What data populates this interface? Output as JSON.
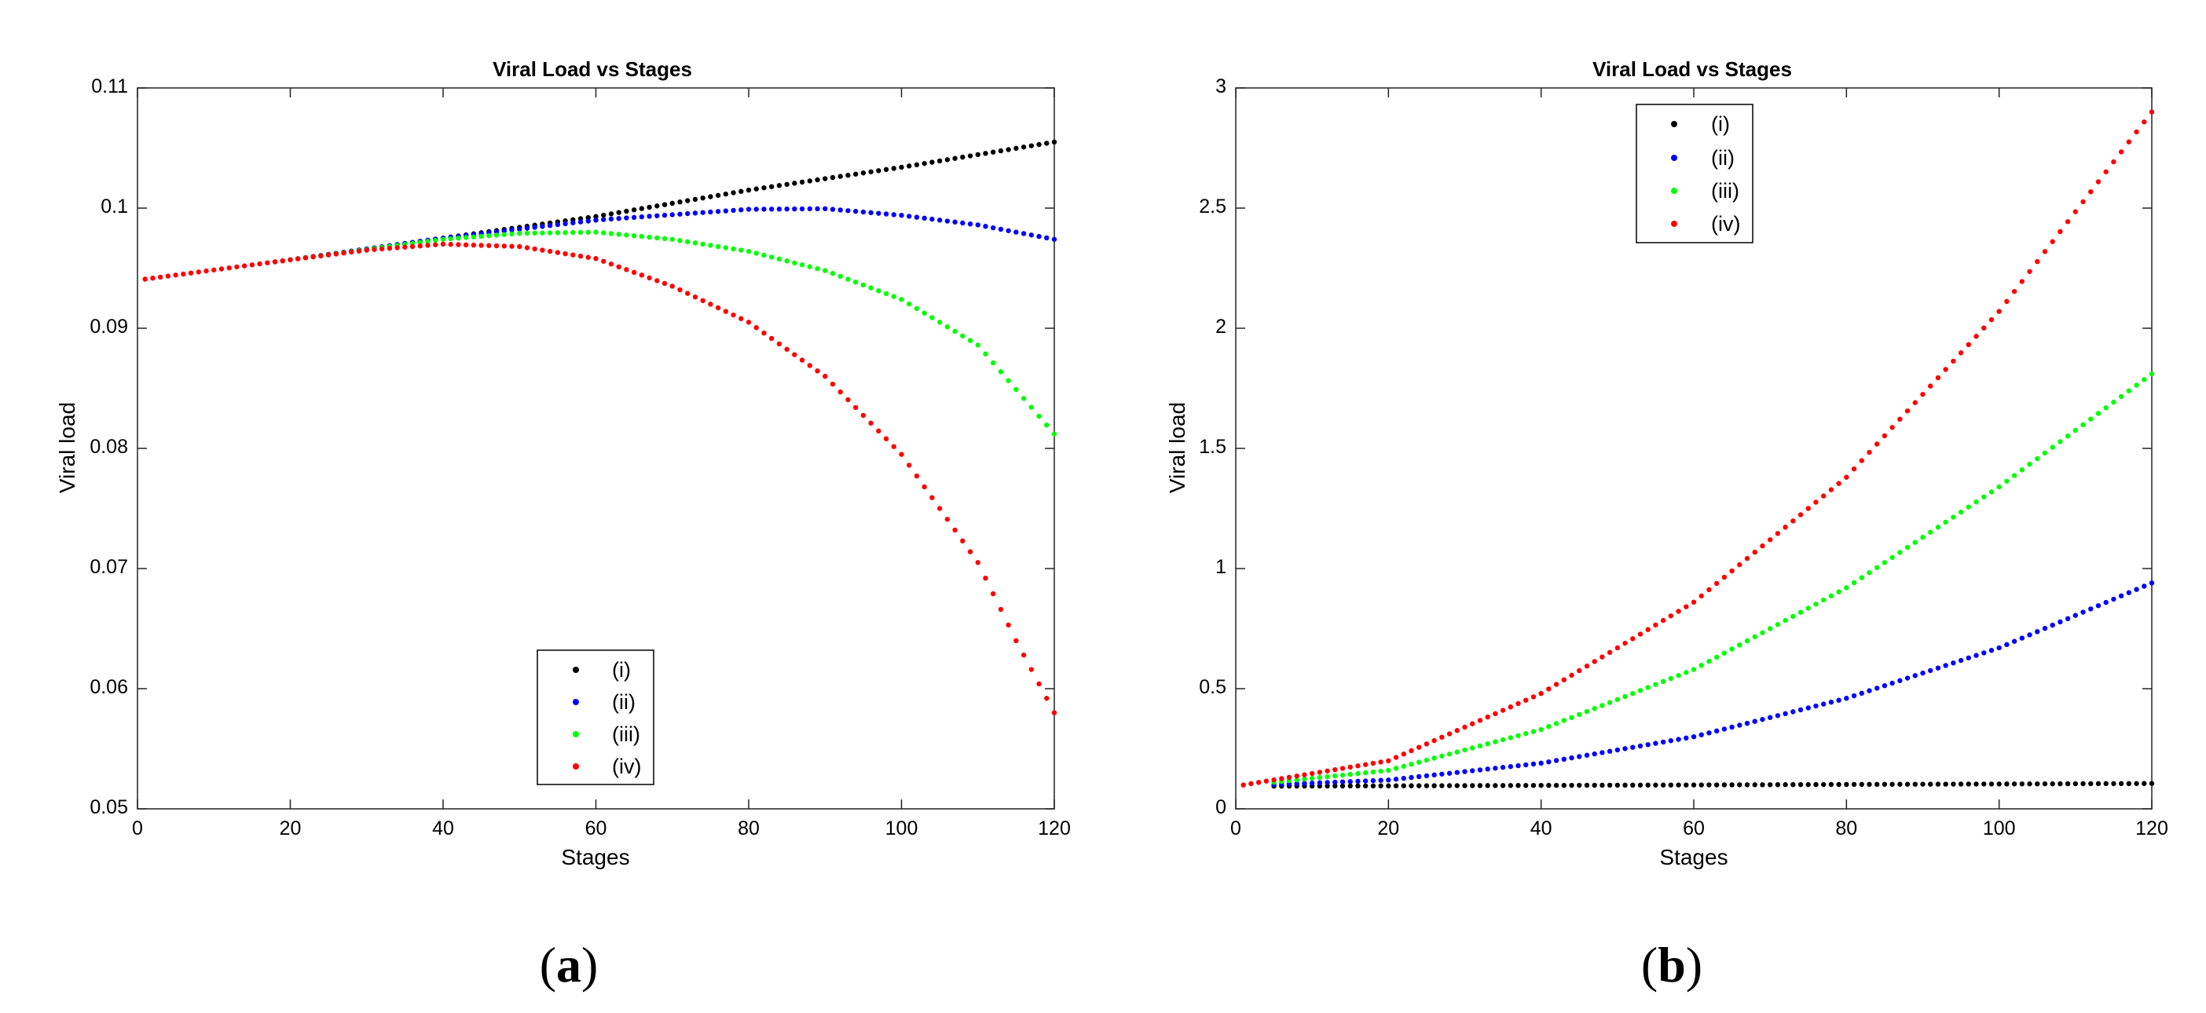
{
  "panels": [
    {
      "caption_letter": "a",
      "chart_data": {
        "type": "scatter",
        "title": "Viral Load vs Stages",
        "xlabel": "Stages",
        "ylabel": "Viral load",
        "xlim": [
          0,
          120
        ],
        "ylim": [
          0.05,
          0.11
        ],
        "xticks": [
          0,
          20,
          40,
          60,
          80,
          100,
          120
        ],
        "xtick_labels": [
          "0",
          "20",
          "40",
          "60",
          "80",
          "100",
          "120"
        ],
        "yticks": [
          0.05,
          0.06,
          0.07,
          0.08,
          0.09,
          0.1,
          0.11
        ],
        "ytick_labels": [
          "0.05",
          "0.06",
          "0.07",
          "0.08",
          "0.09",
          "0.1",
          "0.11"
        ],
        "grid": false,
        "legend_position": "bottom-center",
        "x": {
          "start": 1,
          "end": 120,
          "step": 1
        },
        "series": [
          {
            "name": "(i)",
            "color": "#000000",
            "start": 18,
            "knots_x": [
              0,
              20,
              40,
              60,
              80,
              100,
              120
            ],
            "knots_y": [
              0.094,
              0.0957,
              0.0975,
              0.0993,
              0.1015,
              0.1034,
              0.1055
            ]
          },
          {
            "name": "(ii)",
            "color": "#0000ff",
            "start": 18,
            "knots_x": [
              0,
              20,
              40,
              60,
              80,
              90,
              100,
              110,
              120
            ],
            "knots_y": [
              0.094,
              0.0957,
              0.0975,
              0.099,
              0.0999,
              0.09995,
              0.0994,
              0.0986,
              0.0974
            ]
          },
          {
            "name": "(iii)",
            "color": "#00ff00",
            "start": 18,
            "knots_x": [
              0,
              20,
              40,
              50,
              60,
              70,
              80,
              90,
              100,
              110,
              120
            ],
            "knots_y": [
              0.094,
              0.0957,
              0.0974,
              0.0979,
              0.098,
              0.0974,
              0.0964,
              0.0948,
              0.0924,
              0.0886,
              0.0812
            ]
          },
          {
            "name": "(iv)",
            "color": "#ff0000",
            "start": 1,
            "knots_x": [
              0,
              20,
              30,
              40,
              50,
              60,
              70,
              80,
              90,
              100,
              110,
              115,
              120
            ],
            "knots_y": [
              0.094,
              0.0957,
              0.0965,
              0.097,
              0.0968,
              0.0958,
              0.0935,
              0.0905,
              0.086,
              0.0795,
              0.0705,
              0.064,
              0.058
            ]
          }
        ]
      }
    },
    {
      "caption_letter": "b",
      "chart_data": {
        "type": "scatter",
        "title": "Viral Load vs Stages",
        "xlabel": "Stages",
        "ylabel": "Viral load",
        "xlim": [
          0,
          120
        ],
        "ylim": [
          0,
          3
        ],
        "xticks": [
          0,
          20,
          40,
          60,
          80,
          100,
          120
        ],
        "xtick_labels": [
          "0",
          "20",
          "40",
          "60",
          "80",
          "100",
          "120"
        ],
        "yticks": [
          0,
          0.5,
          1,
          1.5,
          2,
          2.5,
          3
        ],
        "ytick_labels": [
          "0",
          "0.5",
          "1",
          "1.5",
          "2",
          "2.5",
          "3"
        ],
        "grid": false,
        "legend_position": "top-center",
        "x": {
          "start": 1,
          "end": 120,
          "step": 1
        },
        "series": [
          {
            "name": "(i)",
            "color": "#000000",
            "start": 5,
            "knots_x": [
              0,
              20,
              40,
              60,
              80,
              100,
              120
            ],
            "knots_y": [
              0.094,
              0.0957,
              0.0975,
              0.0993,
              0.1015,
              0.1034,
              0.1055
            ]
          },
          {
            "name": "(ii)",
            "color": "#0000ff",
            "start": 5,
            "knots_x": [
              0,
              20,
              40,
              60,
              80,
              100,
              120
            ],
            "knots_y": [
              0.094,
              0.12,
              0.19,
              0.3,
              0.46,
              0.67,
              0.94
            ]
          },
          {
            "name": "(iii)",
            "color": "#00ff00",
            "start": 5,
            "knots_x": [
              0,
              20,
              40,
              60,
              80,
              100,
              120
            ],
            "knots_y": [
              0.094,
              0.16,
              0.33,
              0.58,
              0.92,
              1.34,
              1.81
            ]
          },
          {
            "name": "(iv)",
            "color": "#ff0000",
            "start": 1,
            "knots_x": [
              0,
              20,
              40,
              60,
              80,
              100,
              120
            ],
            "knots_y": [
              0.094,
              0.2,
              0.48,
              0.86,
              1.38,
              2.07,
              2.9
            ]
          }
        ]
      }
    }
  ]
}
